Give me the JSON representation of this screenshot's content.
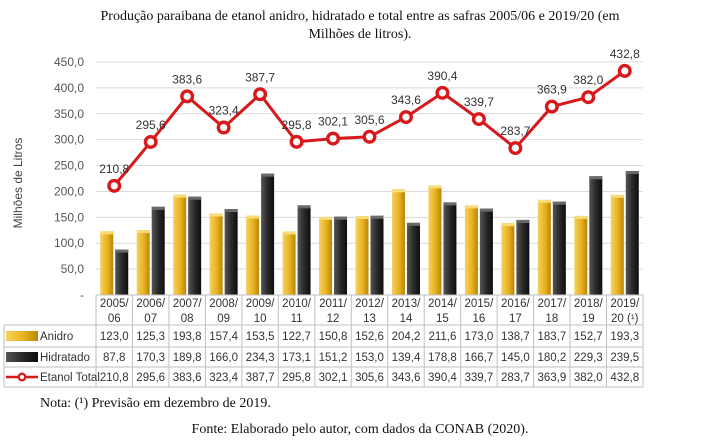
{
  "title_line1": "Produção paraibana de etanol anidro, hidratado e total entre as safras 2005/06 e 2019/20 (em",
  "title_line2": "Milhões de litros).",
  "note": "Nota: (¹) Previsão em dezembro de 2019.",
  "source": "Fonte: Elaborado pelo autor, com dados da CONAB (2020).",
  "colors": {
    "anidro": "#E8B21E",
    "hidratado": "#222222",
    "total": "#D7191C"
  },
  "chart_data": {
    "type": "bar",
    "categories": [
      [
        "2005/",
        "06"
      ],
      [
        "2006/",
        "07"
      ],
      [
        "2007/",
        "08"
      ],
      [
        "2008/",
        "09"
      ],
      [
        "2009/",
        "10"
      ],
      [
        "2010/",
        "11"
      ],
      [
        "2011/",
        "12"
      ],
      [
        "2012/",
        "13"
      ],
      [
        "2013/",
        "14"
      ],
      [
        "2014/",
        "15"
      ],
      [
        "2015/",
        "16"
      ],
      [
        "2016/",
        "17"
      ],
      [
        "2017/",
        "18"
      ],
      [
        "2018/",
        "19"
      ],
      [
        "2019/",
        "20 (¹)"
      ]
    ],
    "ylabel": "Milhões de Litros",
    "ylim": [
      0,
      450
    ],
    "yticks": [
      "-",
      "50,0",
      "100,0",
      "150,0",
      "200,0",
      "250,0",
      "300,0",
      "350,0",
      "400,0",
      "450,0"
    ],
    "series": [
      {
        "name": "Anidro",
        "kind": "bar",
        "values": [
          123.0,
          125.3,
          193.8,
          157.4,
          153.5,
          122.7,
          150.8,
          152.6,
          204.2,
          211.6,
          173.0,
          138.7,
          183.7,
          152.7,
          193.3
        ],
        "labels": [
          "123,0",
          "125,3",
          "193,8",
          "157,4",
          "153,5",
          "122,7",
          "150,8",
          "152,6",
          "204,2",
          "211,6",
          "173,0",
          "138,7",
          "183,7",
          "152,7",
          "193,3"
        ]
      },
      {
        "name": "Hidratado",
        "kind": "bar",
        "values": [
          87.8,
          170.3,
          189.8,
          166.0,
          234.3,
          173.1,
          151.2,
          153.0,
          139.4,
          178.8,
          166.7,
          145.0,
          180.2,
          229.3,
          239.5
        ],
        "labels": [
          "87,8",
          "170,3",
          "189,8",
          "166,0",
          "234,3",
          "173,1",
          "151,2",
          "153,0",
          "139,4",
          "178,8",
          "166,7",
          "145,0",
          "180,2",
          "229,3",
          "239,5"
        ]
      },
      {
        "name": "Etanol Total",
        "kind": "line",
        "values": [
          210.8,
          295.6,
          383.6,
          323.4,
          387.7,
          295.8,
          302.1,
          305.6,
          343.6,
          390.4,
          339.7,
          283.7,
          363.9,
          382.0,
          432.8
        ],
        "labels": [
          "210,8",
          "295,6",
          "383,6",
          "323,4",
          "387,7",
          "295,8",
          "302,1",
          "305,6",
          "343,6",
          "390,4",
          "339,7",
          "283,7",
          "363,9",
          "382,0",
          "432,8"
        ]
      }
    ],
    "legend": "data-table",
    "grid": true
  }
}
